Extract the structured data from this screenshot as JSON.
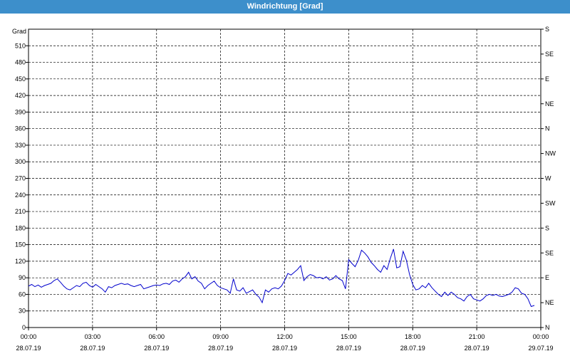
{
  "window": {
    "title": "Windrichtung [Grad]"
  },
  "chart_data": {
    "type": "line",
    "title": "Windrichtung [Grad]",
    "ylabel": "Grad",
    "ylim": [
      0,
      540
    ],
    "yticks": [
      0,
      30,
      60,
      90,
      120,
      150,
      180,
      210,
      240,
      270,
      300,
      330,
      360,
      390,
      420,
      450,
      480,
      510
    ],
    "right_axis_labels": [
      "N",
      "NE",
      "E",
      "SE",
      "S",
      "SW",
      "W",
      "NW",
      "N",
      "NE",
      "E",
      "SE",
      "S"
    ],
    "x_tick_labels": [
      {
        "time": "00:00",
        "date": "28.07.19"
      },
      {
        "time": "03:00",
        "date": "28.07.19"
      },
      {
        "time": "06:00",
        "date": "28.07.19"
      },
      {
        "time": "09:00",
        "date": "28.07.19"
      },
      {
        "time": "12:00",
        "date": "28.07.19"
      },
      {
        "time": "15:00",
        "date": "28.07.19"
      },
      {
        "time": "18:00",
        "date": "28.07.19"
      },
      {
        "time": "21:00",
        "date": "28.07.19"
      },
      {
        "time": "00:00",
        "date": "29.07.19"
      }
    ],
    "xlim_hours": [
      0,
      24
    ],
    "grid": true,
    "line_color": "#0000cc",
    "series": [
      {
        "points": [
          [
            0.0,
            75
          ],
          [
            0.15,
            78
          ],
          [
            0.3,
            74
          ],
          [
            0.45,
            77
          ],
          [
            0.6,
            73
          ],
          [
            0.75,
            76
          ],
          [
            0.9,
            78
          ],
          [
            1.05,
            80
          ],
          [
            1.2,
            85
          ],
          [
            1.35,
            88
          ],
          [
            1.5,
            82
          ],
          [
            1.65,
            75
          ],
          [
            1.8,
            70
          ],
          [
            1.95,
            68
          ],
          [
            2.1,
            72
          ],
          [
            2.25,
            76
          ],
          [
            2.4,
            74
          ],
          [
            2.55,
            80
          ],
          [
            2.7,
            82
          ],
          [
            2.85,
            76
          ],
          [
            3.0,
            73
          ],
          [
            3.15,
            78
          ],
          [
            3.3,
            74
          ],
          [
            3.45,
            70
          ],
          [
            3.6,
            64
          ],
          [
            3.75,
            74
          ],
          [
            3.9,
            72
          ],
          [
            4.05,
            76
          ],
          [
            4.2,
            78
          ],
          [
            4.35,
            80
          ],
          [
            4.5,
            78
          ],
          [
            4.65,
            79
          ],
          [
            4.8,
            76
          ],
          [
            4.95,
            74
          ],
          [
            5.1,
            76
          ],
          [
            5.25,
            78
          ],
          [
            5.4,
            70
          ],
          [
            5.55,
            72
          ],
          [
            5.7,
            74
          ],
          [
            5.85,
            76
          ],
          [
            6.0,
            77
          ],
          [
            6.15,
            76
          ],
          [
            6.3,
            79
          ],
          [
            6.45,
            80
          ],
          [
            6.6,
            78
          ],
          [
            6.75,
            84
          ],
          [
            6.9,
            86
          ],
          [
            7.05,
            82
          ],
          [
            7.2,
            88
          ],
          [
            7.35,
            92
          ],
          [
            7.5,
            100
          ],
          [
            7.65,
            88
          ],
          [
            7.8,
            92
          ],
          [
            7.95,
            84
          ],
          [
            8.1,
            80
          ],
          [
            8.25,
            70
          ],
          [
            8.4,
            76
          ],
          [
            8.55,
            80
          ],
          [
            8.7,
            84
          ],
          [
            8.85,
            76
          ],
          [
            9.0,
            72
          ],
          [
            9.15,
            70
          ],
          [
            9.3,
            68
          ],
          [
            9.45,
            62
          ],
          [
            9.6,
            88
          ],
          [
            9.75,
            68
          ],
          [
            9.9,
            66
          ],
          [
            10.05,
            72
          ],
          [
            10.2,
            62
          ],
          [
            10.35,
            65
          ],
          [
            10.5,
            68
          ],
          [
            10.65,
            60
          ],
          [
            10.8,
            55
          ],
          [
            10.95,
            45
          ],
          [
            11.1,
            68
          ],
          [
            11.25,
            64
          ],
          [
            11.4,
            70
          ],
          [
            11.55,
            72
          ],
          [
            11.7,
            70
          ],
          [
            11.85,
            75
          ],
          [
            12.0,
            85
          ],
          [
            12.15,
            98
          ],
          [
            12.3,
            95
          ],
          [
            12.45,
            100
          ],
          [
            12.6,
            105
          ],
          [
            12.75,
            112
          ],
          [
            12.9,
            85
          ],
          [
            13.05,
            92
          ],
          [
            13.2,
            96
          ],
          [
            13.35,
            94
          ],
          [
            13.5,
            90
          ],
          [
            13.65,
            91
          ],
          [
            13.8,
            88
          ],
          [
            13.95,
            92
          ],
          [
            14.1,
            86
          ],
          [
            14.25,
            88
          ],
          [
            14.4,
            94
          ],
          [
            14.55,
            88
          ],
          [
            14.7,
            85
          ],
          [
            14.85,
            70
          ],
          [
            15.0,
            123
          ],
          [
            15.15,
            116
          ],
          [
            15.3,
            110
          ],
          [
            15.45,
            122
          ],
          [
            15.6,
            140
          ],
          [
            15.75,
            135
          ],
          [
            15.9,
            128
          ],
          [
            16.05,
            118
          ],
          [
            16.2,
            112
          ],
          [
            16.35,
            105
          ],
          [
            16.5,
            100
          ],
          [
            16.65,
            112
          ],
          [
            16.8,
            105
          ],
          [
            16.95,
            125
          ],
          [
            17.1,
            142
          ],
          [
            17.25,
            108
          ],
          [
            17.4,
            110
          ],
          [
            17.55,
            138
          ],
          [
            17.7,
            122
          ],
          [
            17.85,
            96
          ],
          [
            18.0,
            78
          ],
          [
            18.15,
            68
          ],
          [
            18.3,
            70
          ],
          [
            18.45,
            76
          ],
          [
            18.6,
            72
          ],
          [
            18.75,
            80
          ],
          [
            18.9,
            72
          ],
          [
            19.05,
            66
          ],
          [
            19.2,
            60
          ],
          [
            19.35,
            56
          ],
          [
            19.5,
            64
          ],
          [
            19.65,
            58
          ],
          [
            19.8,
            64
          ],
          [
            19.95,
            60
          ],
          [
            20.1,
            54
          ],
          [
            20.25,
            52
          ],
          [
            20.4,
            48
          ],
          [
            20.55,
            56
          ],
          [
            20.7,
            60
          ],
          [
            20.85,
            52
          ],
          [
            21.0,
            50
          ],
          [
            21.15,
            48
          ],
          [
            21.3,
            52
          ],
          [
            21.45,
            58
          ],
          [
            21.6,
            60
          ],
          [
            21.75,
            58
          ],
          [
            21.9,
            60
          ],
          [
            22.05,
            57
          ],
          [
            22.2,
            56
          ],
          [
            22.35,
            58
          ],
          [
            22.5,
            60
          ],
          [
            22.65,
            64
          ],
          [
            22.8,
            72
          ],
          [
            22.95,
            70
          ],
          [
            23.1,
            62
          ],
          [
            23.25,
            60
          ],
          [
            23.4,
            52
          ],
          [
            23.55,
            38
          ],
          [
            23.7,
            40
          ]
        ]
      }
    ]
  }
}
